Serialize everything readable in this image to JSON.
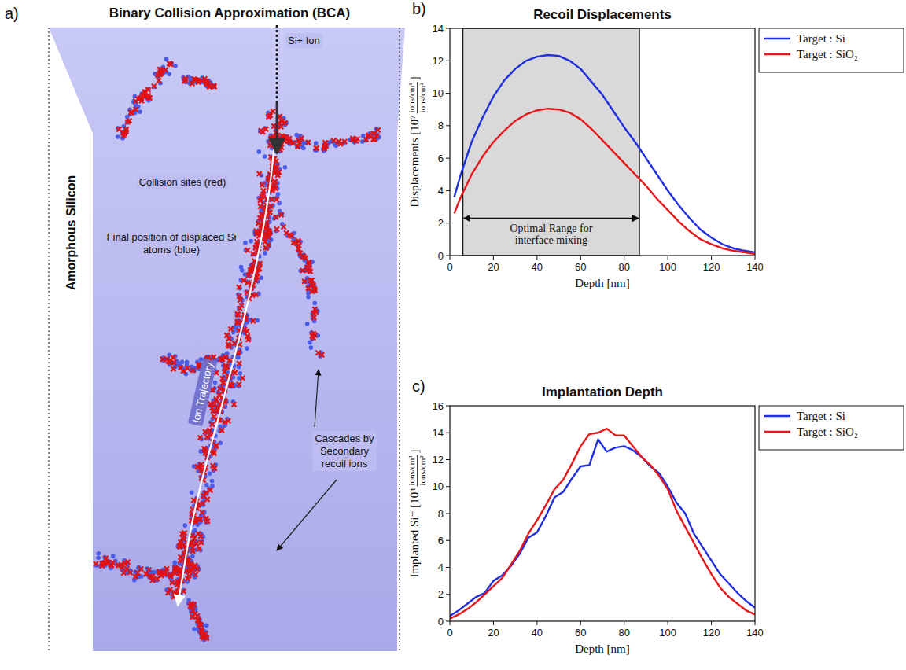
{
  "diagram": {
    "label": "a)",
    "title": "Binary Collision Approximation (BCA)",
    "ion_label": "Si+ Ion",
    "side_label": "Amorphous Silicon",
    "annotations": [
      "Collision sites (red)",
      "Final position of displaced Si atoms (blue)",
      "Ion Trajectory",
      "Cascades by Secondary recoil ions"
    ]
  },
  "chart_data": [
    {
      "type": "line",
      "label": "b)",
      "title": "Recoil Displacements",
      "x_label": "Depth [nm]",
      "y_label": {
        "text": "Displacements [10⁷",
        "numerator": "ions/cm³",
        "denominator": "ions/cm²",
        "close": "]"
      },
      "x": [
        2,
        5,
        10,
        15,
        20,
        25,
        30,
        35,
        40,
        45,
        50,
        55,
        60,
        65,
        70,
        75,
        80,
        85,
        90,
        95,
        100,
        105,
        110,
        115,
        120,
        125,
        130,
        135,
        140
      ],
      "series": [
        {
          "name": "Target : Si",
          "color": "#1f2fe0",
          "values": [
            3.6,
            5.0,
            7.0,
            8.5,
            9.8,
            10.8,
            11.5,
            12.0,
            12.25,
            12.35,
            12.3,
            12.0,
            11.5,
            10.7,
            9.9,
            8.9,
            7.9,
            7.0,
            6.0,
            5.0,
            4.0,
            3.1,
            2.3,
            1.6,
            1.1,
            0.7,
            0.45,
            0.3,
            0.2
          ]
        },
        {
          "name": "Target : SiO₂",
          "color": "#e8161b",
          "values": [
            2.6,
            3.6,
            5.0,
            6.1,
            7.0,
            7.7,
            8.3,
            8.7,
            8.95,
            9.05,
            9.0,
            8.8,
            8.4,
            7.8,
            7.1,
            6.4,
            5.7,
            5.0,
            4.3,
            3.5,
            2.8,
            2.1,
            1.5,
            1.0,
            0.7,
            0.45,
            0.3,
            0.2,
            0.1
          ]
        }
      ],
      "xlim": [
        0,
        140
      ],
      "xticks": [
        0,
        20,
        40,
        60,
        80,
        100,
        120,
        140
      ],
      "ylim": [
        0,
        14
      ],
      "yticks": [
        0,
        2,
        4,
        6,
        8,
        10,
        12,
        14
      ],
      "legend": "right",
      "annotations": [
        {
          "text": "Optimal Range for interface mixing",
          "x_range": [
            6,
            87
          ],
          "y": 2.3
        }
      ]
    },
    {
      "type": "line",
      "label": "c)",
      "title": "Implantation Depth",
      "x_label": "Depth [nm]",
      "y_label": {
        "text": "Implanted Si⁺ [10⁴",
        "numerator": "ions/cm³",
        "denominator": "ions/cm²",
        "close": "]"
      },
      "x": [
        0,
        4,
        8,
        12,
        16,
        20,
        24,
        28,
        32,
        36,
        40,
        44,
        48,
        52,
        56,
        60,
        64,
        68,
        72,
        76,
        80,
        84,
        88,
        92,
        96,
        100,
        104,
        108,
        112,
        116,
        120,
        124,
        128,
        132,
        136,
        140
      ],
      "series": [
        {
          "name": "Target : Si",
          "color": "#1f2fe0",
          "values": [
            0.4,
            0.8,
            1.3,
            1.8,
            2.1,
            3.0,
            3.4,
            4.1,
            5.0,
            6.2,
            6.6,
            7.8,
            9.2,
            9.6,
            10.6,
            11.5,
            11.6,
            13.5,
            12.6,
            12.9,
            13.0,
            12.7,
            12.2,
            11.5,
            11.0,
            10.0,
            8.8,
            8.0,
            6.5,
            5.5,
            4.5,
            3.5,
            2.8,
            2.1,
            1.5,
            1.0
          ]
        },
        {
          "name": "Target : SiO₂",
          "color": "#e8161b",
          "values": [
            0.2,
            0.5,
            0.9,
            1.4,
            2.0,
            2.6,
            3.2,
            4.2,
            5.2,
            6.5,
            7.5,
            8.6,
            9.8,
            10.5,
            11.7,
            13.0,
            13.9,
            14.0,
            14.3,
            13.8,
            13.8,
            13.0,
            12.2,
            11.6,
            10.8,
            9.8,
            8.2,
            7.0,
            5.8,
            4.6,
            3.5,
            2.5,
            1.8,
            1.3,
            0.8,
            0.5
          ]
        }
      ],
      "xlim": [
        0,
        140
      ],
      "xticks": [
        0,
        20,
        40,
        60,
        80,
        100,
        120,
        140
      ],
      "ylim": [
        0,
        16
      ],
      "yticks": [
        0,
        2,
        4,
        6,
        8,
        10,
        12,
        14,
        16
      ],
      "legend": "right"
    }
  ]
}
